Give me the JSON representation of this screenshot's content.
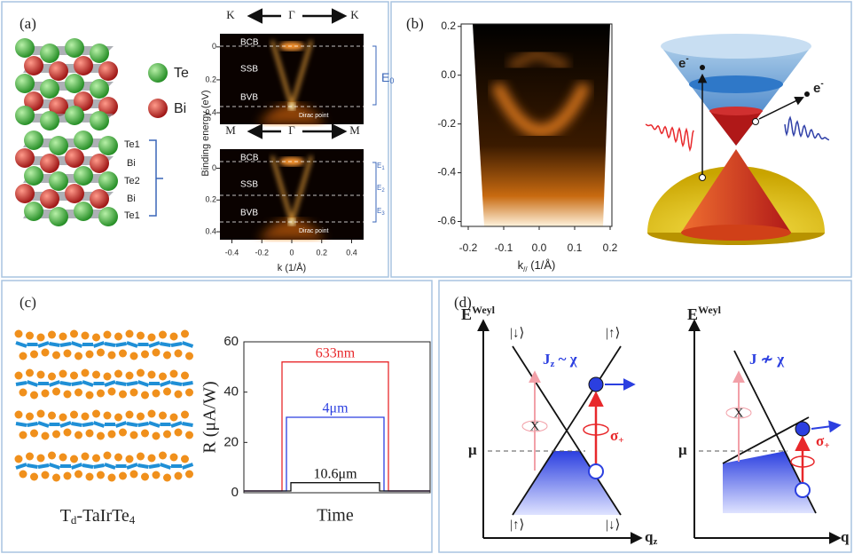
{
  "panels": {
    "a": {
      "label": "(a)",
      "legend": [
        {
          "name": "Te",
          "color": "#3fae3a"
        },
        {
          "name": "Bi",
          "color": "#c62828"
        }
      ],
      "layers": [
        "Te1",
        "Bi",
        "Te2",
        "Bi",
        "Te1"
      ],
      "arpes": {
        "ylabel": "Binding energy (eV)",
        "xlabel": "k (1/Å)",
        "xlim": [
          -0.48,
          0.48
        ],
        "xticks": [
          -0.4,
          -0.2,
          0,
          0.2,
          0.4
        ],
        "cuts": [
          {
            "directions": [
              "K",
              "Γ",
              "K"
            ],
            "ylim": [
              -0.08,
              0.47
            ],
            "yticks": [
              0,
              0.2,
              0.4
            ],
            "bands": [
              "BCB",
              "SSB",
              "BVB"
            ],
            "dirac": "Dirac point",
            "gaps": [
              [
                "E",
                "0"
              ]
            ]
          },
          {
            "directions": [
              "M",
              "Γ",
              "M"
            ],
            "ylim": [
              -0.12,
              0.45
            ],
            "yticks": [
              0,
              0.2,
              0.4
            ],
            "bands": [
              "BCB",
              "SSB",
              "BVB"
            ],
            "dirac": "Dirac point",
            "gaps": [
              [
                "E",
                "1"
              ],
              [
                "E",
                "2"
              ],
              [
                "E",
                "3"
              ]
            ]
          }
        ]
      }
    },
    "b": {
      "label": "(b)",
      "plot": {
        "xlabel": [
          "k",
          "//",
          " (1/Å)"
        ],
        "xlim": [
          -0.22,
          0.205
        ],
        "xticks": [
          -0.2,
          -0.1,
          {
            "value": 0,
            "label": "0.0"
          },
          0.1,
          0.2
        ],
        "ylim": [
          -0.62,
          0.21
        ],
        "yticks": [
          0.2,
          {
            "value": 0,
            "label": "0.0"
          },
          -0.2,
          -0.4,
          -0.6
        ]
      },
      "electrons": [
        [
          "e",
          "-"
        ],
        [
          "e",
          "-"
        ]
      ]
    },
    "c": {
      "label": "(c)",
      "structure": [
        "T",
        "d",
        "-TaIrTe",
        "4"
      ],
      "chart": {
        "ylabel": "R (μA/W)",
        "xlabel": "Time",
        "ylim": [
          0,
          60
        ],
        "yticks": [
          0,
          20,
          40,
          60
        ],
        "series": [
          {
            "name": "633nm",
            "color": "#e8282b",
            "values": [
              52
            ]
          },
          {
            "name": "4μm",
            "color": "#2b3fe0",
            "values": [
              30
            ]
          },
          {
            "name": "10.6μm",
            "color": "#111111",
            "values": [
              4
            ]
          }
        ]
      }
    },
    "d": {
      "label": "(d)",
      "diagrams": [
        {
          "ylabel": [
            "E",
            "Weyl"
          ],
          "states": [
            "|↓⟩",
            "|↑⟩",
            "|↑⟩",
            "|↓⟩"
          ],
          "relation": [
            "J",
            "z",
            " ~ χ"
          ],
          "forbidden": "X",
          "excitation": [
            "σ",
            "+"
          ],
          "mu": "μ",
          "xlabel": [
            "q",
            "z"
          ]
        },
        {
          "ylabel": [
            "E",
            "Weyl"
          ],
          "relation": [
            "J ≁ χ"
          ],
          "forbidden": "X",
          "excitation": [
            "σ",
            "+"
          ],
          "mu": "μ",
          "xlabel": [
            "q"
          ]
        }
      ]
    }
  }
}
